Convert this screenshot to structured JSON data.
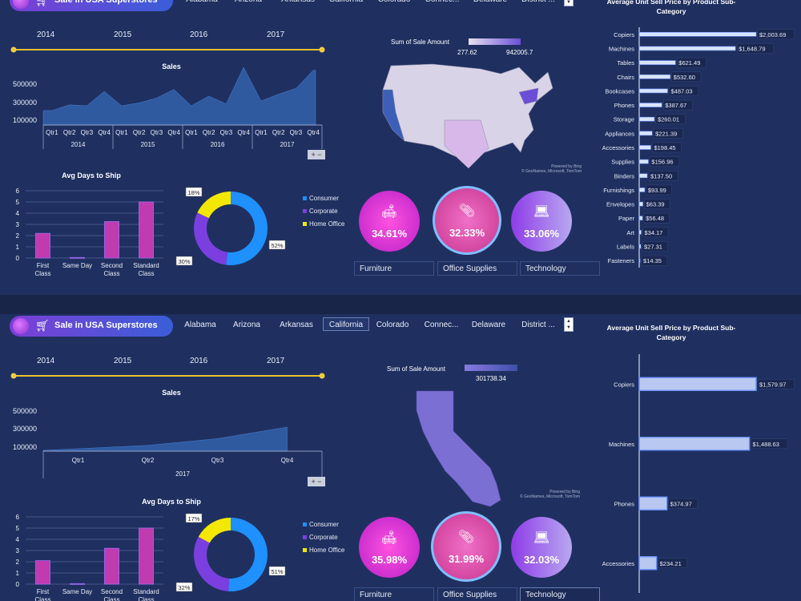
{
  "brand": {
    "title": "Sale in USA Superstores",
    "cart_icon": "cart-icon"
  },
  "states": [
    "Alabama",
    "Arizona",
    "Arkansas",
    "California",
    "Colorado",
    "Connec...",
    "Delaware",
    "District ..."
  ],
  "years": [
    "2014",
    "2015",
    "2016",
    "2017"
  ],
  "labels": {
    "sales_title": "Sales",
    "avg_days_title": "Avg Days to Ship",
    "map_legend": "Sum of Sale Amount",
    "price_title_line1": "Average Unit Sell Price by Product Sub-",
    "price_title_line2": "Category",
    "map_credit": "Powered by Bing",
    "map_credit2": "© GeoNames, Microsoft, TomTom"
  },
  "colors": {
    "furniture": "#e040c0",
    "office": "#d84ab8",
    "technology": "#8a3ee0",
    "consumer": "#1e90ff",
    "corporate": "#7b3fe0",
    "home_office": "#f5e800"
  },
  "segments": [
    "Consumer",
    "Corporate",
    "Home Office"
  ],
  "categories": [
    "Furniture",
    "Office Supplies",
    "Technology"
  ],
  "dashboard1": {
    "map_min": "277.62",
    "map_max": "942005.7",
    "kpis": [
      "34.61%",
      "32.33%",
      "33.06%"
    ],
    "donut": [
      "52%",
      "30%",
      "18%"
    ],
    "selected_category": ""
  },
  "dashboard2": {
    "selected_state": "California",
    "map_value": "301738.34",
    "kpis": [
      "35.98%",
      "31.99%",
      "32.03%"
    ],
    "donut": [
      "51%",
      "32%",
      "17%"
    ],
    "selected_category": "Technology"
  },
  "chart_data": [
    {
      "type": "area",
      "title": "Sales",
      "categories": [
        "Qtr1 2014",
        "Qtr2 2014",
        "Qtr3 2014",
        "Qtr4 2014",
        "Qtr1 2015",
        "Qtr2 2015",
        "Qtr3 2015",
        "Qtr4 2015",
        "Qtr1 2016",
        "Qtr2 2016",
        "Qtr3 2016",
        "Qtr4 2016",
        "Qtr1 2017",
        "Qtr2 2017",
        "Qtr3 2017",
        "Qtr4 2017"
      ],
      "values": [
        150000,
        210000,
        200000,
        350000,
        200000,
        230000,
        280000,
        370000,
        200000,
        300000,
        220000,
        600000,
        250000,
        320000,
        380000,
        570000
      ],
      "yticks": [
        "500000",
        "300000",
        "100000"
      ],
      "quarters": [
        "Qtr1",
        "Qtr2",
        "Qtr3",
        "Qtr4"
      ],
      "ylim": [
        0,
        600000
      ]
    },
    {
      "type": "bar",
      "title": "Avg Days to Ship",
      "categories": [
        "First Class",
        "Same Day",
        "Second Class",
        "Standard Class"
      ],
      "values": [
        2.2,
        0.05,
        3.25,
        5.0
      ],
      "yticks": [
        "6",
        "5",
        "4",
        "3",
        "2",
        "1",
        "0"
      ],
      "ylim": [
        0,
        6
      ]
    },
    {
      "type": "pie",
      "categories": [
        "Consumer",
        "Corporate",
        "Home Office"
      ],
      "values": [
        52,
        30,
        18
      ]
    },
    {
      "type": "bar",
      "title": "Average Unit Sell Price by Product Sub-Category",
      "categories": [
        "Copiers",
        "Machines",
        "Tables",
        "Chairs",
        "Bookcases",
        "Phones",
        "Storage",
        "Appliances",
        "Accessories",
        "Supplies",
        "Binders",
        "Furnishings",
        "Envelopes",
        "Paper",
        "Art",
        "Labels",
        "Fasteners"
      ],
      "values": [
        2003.69,
        1648.79,
        621.49,
        532.6,
        487.03,
        387.67,
        260.01,
        221.39,
        198.45,
        156.96,
        137.5,
        93.99,
        63.39,
        56.48,
        34.17,
        27.31,
        14.35
      ],
      "value_labels": [
        "$2,003.69",
        "$1,648.79",
        "$621.49",
        "$532.60",
        "$487.03",
        "$387.67",
        "$260.01",
        "$221.39",
        "$198.45",
        "$156.96",
        "$137.50",
        "$93.99",
        "$63.39",
        "$56.48",
        "$34.17",
        "$27.31",
        "$14.35"
      ]
    },
    {
      "type": "area",
      "title": "Sales",
      "categories": [
        "Qtr1 2017",
        "Qtr2 2017",
        "Qtr3 2017",
        "Qtr4 2017"
      ],
      "values": [
        20000,
        60000,
        130000,
        250000
      ],
      "yticks": [
        "500000",
        "300000",
        "100000"
      ],
      "ylim": [
        0,
        600000
      ],
      "year_label": "2017"
    },
    {
      "type": "bar",
      "title": "Avg Days to Ship",
      "categories": [
        "First Class",
        "Same Day",
        "Second Class",
        "Standard Class"
      ],
      "values": [
        2.1,
        0.05,
        3.2,
        5.0
      ],
      "yticks": [
        "6",
        "5",
        "4",
        "3",
        "2",
        "1",
        "0"
      ],
      "ylim": [
        0,
        6
      ]
    },
    {
      "type": "pie",
      "categories": [
        "Consumer",
        "Corporate",
        "Home Office"
      ],
      "values": [
        51,
        32,
        17
      ]
    },
    {
      "type": "bar",
      "title": "Average Unit Sell Price by Product Sub-Category",
      "categories": [
        "Copiers",
        "Machines",
        "Phones",
        "Accessories"
      ],
      "values": [
        1579.97,
        1488.63,
        374.97,
        234.21
      ],
      "value_labels": [
        "$1,579.97",
        "$1,488.63",
        "$374.97",
        "$234.21"
      ]
    }
  ]
}
